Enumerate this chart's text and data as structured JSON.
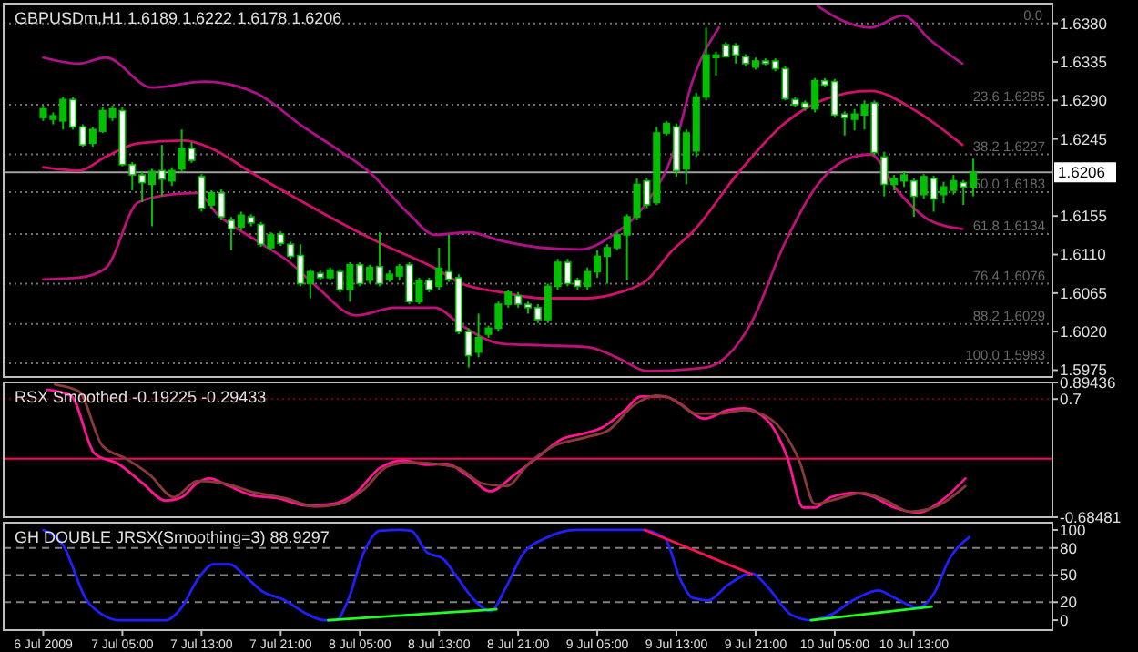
{
  "chart_data": [
    {
      "type": "candlestick",
      "title": "GBPUSDm,H1  1.6189 1.6222 1.6178 1.6206",
      "color": "#00c000",
      "x": [
        "2009-07-06T21:00",
        "2009-07-06T22:00",
        "2009-07-06T23:00",
        "2009-07-07T00:00",
        "2009-07-07T01:00",
        "2009-07-07T02:00",
        "2009-07-07T03:00",
        "2009-07-07T04:00",
        "2009-07-07T05:00",
        "2009-07-07T06:00",
        "2009-07-07T07:00",
        "2009-07-07T08:00",
        "2009-07-07T09:00",
        "2009-07-07T10:00",
        "2009-07-07T11:00",
        "2009-07-07T12:00",
        "2009-07-07T13:00",
        "2009-07-07T14:00",
        "2009-07-07T15:00",
        "2009-07-07T16:00",
        "2009-07-07T17:00",
        "2009-07-07T18:00",
        "2009-07-07T19:00",
        "2009-07-07T20:00",
        "2009-07-07T21:00",
        "2009-07-07T22:00",
        "2009-07-07T23:00",
        "2009-07-08T00:00",
        "2009-07-08T01:00",
        "2009-07-08T02:00",
        "2009-07-08T03:00",
        "2009-07-08T04:00",
        "2009-07-08T05:00",
        "2009-07-08T06:00",
        "2009-07-08T07:00",
        "2009-07-08T08:00",
        "2009-07-08T09:00",
        "2009-07-08T10:00",
        "2009-07-08T11:00",
        "2009-07-08T12:00",
        "2009-07-08T13:00",
        "2009-07-08T14:00",
        "2009-07-08T15:00",
        "2009-07-08T16:00",
        "2009-07-08T17:00",
        "2009-07-08T18:00",
        "2009-07-08T19:00",
        "2009-07-08T20:00",
        "2009-07-08T21:00",
        "2009-07-08T22:00",
        "2009-07-08T23:00",
        "2009-07-09T00:00",
        "2009-07-09T01:00",
        "2009-07-09T02:00",
        "2009-07-09T03:00",
        "2009-07-09T04:00",
        "2009-07-09T05:00",
        "2009-07-09T06:00",
        "2009-07-09T07:00",
        "2009-07-09T08:00",
        "2009-07-09T09:00",
        "2009-07-09T10:00",
        "2009-07-09T11:00",
        "2009-07-09T12:00",
        "2009-07-09T13:00",
        "2009-07-09T14:00",
        "2009-07-09T15:00",
        "2009-07-09T16:00",
        "2009-07-09T17:00",
        "2009-07-09T18:00",
        "2009-07-09T19:00",
        "2009-07-09T20:00",
        "2009-07-09T21:00",
        "2009-07-09T22:00",
        "2009-07-09T23:00",
        "2009-07-10T00:00",
        "2009-07-10T01:00",
        "2009-07-10T02:00",
        "2009-07-10T03:00",
        "2009-07-10T04:00",
        "2009-07-10T05:00",
        "2009-07-10T06:00",
        "2009-07-10T07:00",
        "2009-07-10T08:00",
        "2009-07-10T09:00",
        "2009-07-10T10:00",
        "2009-07-10T11:00",
        "2009-07-10T12:00",
        "2009-07-10T13:00",
        "2009-07-10T14:00",
        "2009-07-10T15:00",
        "2009-07-10T16:00",
        "2009-07-10T17:00",
        "2009-07-10T18:00",
        "2009-07-10T19:00"
      ],
      "ohlc": [
        [
          1.627,
          1.6284,
          1.6266,
          1.628
        ],
        [
          1.6268,
          1.6276,
          1.6262,
          1.6272
        ],
        [
          1.6266,
          1.6294,
          1.6256,
          1.6291
        ],
        [
          1.6291,
          1.6294,
          1.6256,
          1.6259
        ],
        [
          1.6259,
          1.6262,
          1.6236,
          1.6238
        ],
        [
          1.624,
          1.6259,
          1.6236,
          1.6256
        ],
        [
          1.6254,
          1.6282,
          1.6252,
          1.6278
        ],
        [
          1.627,
          1.6284,
          1.6266,
          1.628
        ],
        [
          1.6278,
          1.6282,
          1.6213,
          1.6215
        ],
        [
          1.6215,
          1.6218,
          1.6185,
          1.6203
        ],
        [
          1.6203,
          1.6206,
          1.6171,
          1.6194
        ],
        [
          1.6192,
          1.621,
          1.6143,
          1.6207
        ],
        [
          1.6208,
          1.6238,
          1.6178,
          1.6198
        ],
        [
          1.6196,
          1.6212,
          1.619,
          1.6208
        ],
        [
          1.621,
          1.6256,
          1.6206,
          1.6234
        ],
        [
          1.6234,
          1.6241,
          1.6217,
          1.622
        ],
        [
          1.6201,
          1.6204,
          1.616,
          1.6164
        ],
        [
          1.6168,
          1.6185,
          1.6164,
          1.6182
        ],
        [
          1.6182,
          1.6186,
          1.615,
          1.6154
        ],
        [
          1.615,
          1.6154,
          1.6115,
          1.614
        ],
        [
          1.6142,
          1.616,
          1.6138,
          1.6156
        ],
        [
          1.6154,
          1.6157,
          1.6143,
          1.6147
        ],
        [
          1.6145,
          1.6148,
          1.6119,
          1.6122
        ],
        [
          1.6118,
          1.6136,
          1.6115,
          1.6133
        ],
        [
          1.6134,
          1.6137,
          1.612,
          1.6123
        ],
        [
          1.6122,
          1.6125,
          1.6105,
          1.6108
        ],
        [
          1.6109,
          1.6122,
          1.6073,
          1.6076
        ],
        [
          1.6076,
          1.6093,
          1.6059,
          1.609
        ],
        [
          1.6088,
          1.6091,
          1.608,
          1.6083
        ],
        [
          1.6083,
          1.6095,
          1.608,
          1.6092
        ],
        [
          1.609,
          1.6093,
          1.6066,
          1.6069
        ],
        [
          1.6069,
          1.6101,
          1.6055,
          1.6098
        ],
        [
          1.6098,
          1.6101,
          1.6073,
          1.6076
        ],
        [
          1.608,
          1.6098,
          1.6076,
          1.6095
        ],
        [
          1.6096,
          1.6136,
          1.6073,
          1.6076
        ],
        [
          1.6081,
          1.6092,
          1.6078,
          1.6087
        ],
        [
          1.6085,
          1.6099,
          1.608,
          1.6096
        ],
        [
          1.6098,
          1.6101,
          1.6052,
          1.6055
        ],
        [
          1.6055,
          1.6083,
          1.6052,
          1.608
        ],
        [
          1.608,
          1.6083,
          1.6066,
          1.6069
        ],
        [
          1.6073,
          1.6118,
          1.6069,
          1.6094
        ],
        [
          1.609,
          1.6133,
          1.6078,
          1.6081
        ],
        [
          1.6083,
          1.6087,
          1.6017,
          1.602
        ],
        [
          1.602,
          1.6024,
          1.5978,
          1.5992
        ],
        [
          1.5996,
          1.6041,
          1.599,
          1.6013
        ],
        [
          1.6017,
          1.6027,
          1.6013,
          1.6024
        ],
        [
          1.6024,
          1.6055,
          1.602,
          1.6052
        ],
        [
          1.6052,
          1.6069,
          1.6048,
          1.6066
        ],
        [
          1.6062,
          1.6066,
          1.6048,
          1.6052
        ],
        [
          1.6052,
          1.6055,
          1.6041,
          1.6048
        ],
        [
          1.6048,
          1.6052,
          1.603,
          1.6034
        ],
        [
          1.6034,
          1.6076,
          1.603,
          1.6073
        ],
        [
          1.6073,
          1.6105,
          1.6069,
          1.6101
        ],
        [
          1.6101,
          1.6105,
          1.6073,
          1.6076
        ],
        [
          1.608,
          1.6083,
          1.6069,
          1.6073
        ],
        [
          1.6073,
          1.6095,
          1.6069,
          1.609
        ],
        [
          1.609,
          1.6115,
          1.6083,
          1.6108
        ],
        [
          1.6108,
          1.6122,
          1.6076,
          1.6118
        ],
        [
          1.6118,
          1.6136,
          1.6115,
          1.6133
        ],
        [
          1.6133,
          1.6157,
          1.608,
          1.6154
        ],
        [
          1.6154,
          1.6199,
          1.615,
          1.6192
        ],
        [
          1.6196,
          1.6199,
          1.6164,
          1.6168
        ],
        [
          1.6171,
          1.6259,
          1.6168,
          1.6252
        ],
        [
          1.6252,
          1.6266,
          1.6249,
          1.6263
        ],
        [
          1.6259,
          1.6263,
          1.6201,
          1.6208
        ],
        [
          1.621,
          1.6256,
          1.6192,
          1.6252
        ],
        [
          1.6231,
          1.6299,
          1.6224,
          1.6294
        ],
        [
          1.6294,
          1.6375,
          1.629,
          1.6343
        ],
        [
          1.634,
          1.6347,
          1.6319,
          1.6343
        ],
        [
          1.6355,
          1.6358,
          1.634,
          1.6341
        ],
        [
          1.6354,
          1.6357,
          1.6333,
          1.6343
        ],
        [
          1.6341,
          1.6344,
          1.633,
          1.6333
        ],
        [
          1.6329,
          1.634,
          1.6326,
          1.6336
        ],
        [
          1.6336,
          1.6339,
          1.6331,
          1.6333
        ],
        [
          1.6336,
          1.6339,
          1.6324,
          1.6327
        ],
        [
          1.6327,
          1.633,
          1.629,
          1.6292
        ],
        [
          1.6291,
          1.6294,
          1.6282,
          1.6285
        ],
        [
          1.6287,
          1.629,
          1.6278,
          1.6282
        ],
        [
          1.628,
          1.6316,
          1.6276,
          1.6313
        ],
        [
          1.6313,
          1.6316,
          1.6305,
          1.6308
        ],
        [
          1.6312,
          1.6315,
          1.627,
          1.6273
        ],
        [
          1.6274,
          1.6277,
          1.6249,
          1.627
        ],
        [
          1.6268,
          1.628,
          1.6255,
          1.6274
        ],
        [
          1.6273,
          1.629,
          1.6256,
          1.6285
        ],
        [
          1.6287,
          1.629,
          1.6226,
          1.6229
        ],
        [
          1.6224,
          1.623,
          1.6178,
          1.6192
        ],
        [
          1.6192,
          1.6203,
          1.6185,
          1.6199
        ],
        [
          1.6196,
          1.6206,
          1.6189,
          1.6203
        ],
        [
          1.6196,
          1.6199,
          1.6154,
          1.6178
        ],
        [
          1.618,
          1.6204,
          1.6175,
          1.6201
        ],
        [
          1.6199,
          1.6202,
          1.616,
          1.6175
        ],
        [
          1.618,
          1.6195,
          1.617,
          1.6189
        ],
        [
          1.6185,
          1.6203,
          1.618,
          1.6196
        ],
        [
          1.6194,
          1.6197,
          1.6168,
          1.6189
        ],
        [
          1.6189,
          1.6222,
          1.6178,
          1.6206
        ]
      ],
      "colors": [
        "#00c000",
        "#00c000",
        "#00c000",
        "#ffffff",
        "#ffffff",
        "#00c000",
        "#00c000",
        "#00c000",
        "#ffffff",
        "#ffffff",
        "#ffffff",
        "#00c000",
        "#ffffff",
        "#00c000",
        "#00c000",
        "#ffffff",
        "#ffffff",
        "#00c000",
        "#ffffff",
        "#ffffff",
        "#00c000",
        "#ffffff",
        "#ffffff",
        "#00c000",
        "#ffffff",
        "#ffffff",
        "#ffffff",
        "#00c000",
        "#ffffff",
        "#00c000",
        "#ffffff",
        "#00c000",
        "#ffffff",
        "#00c000",
        "#ffffff",
        "#00c000",
        "#00c000",
        "#ffffff",
        "#00c000",
        "#ffffff",
        "#00c000",
        "#ffffff",
        "#ffffff",
        "#ffffff",
        "#00c000",
        "#00c000",
        "#00c000",
        "#00c000",
        "#ffffff",
        "#ffffff",
        "#ffffff",
        "#00c000",
        "#00c000",
        "#ffffff",
        "#ffffff",
        "#00c000",
        "#00c000",
        "#00c000",
        "#00c000",
        "#00c000",
        "#00c000",
        "#ffffff",
        "#00c000",
        "#00c000",
        "#ffffff",
        "#00c000",
        "#00c000",
        "#00c000",
        "#00c000",
        "#ffffff",
        "#ffffff",
        "#ffffff",
        "#00c000",
        "#ffffff",
        "#ffffff",
        "#ffffff",
        "#ffffff",
        "#ffffff",
        "#00c000",
        "#ffffff",
        "#ffffff",
        "#ffffff",
        "#00c000",
        "#00c000",
        "#ffffff",
        "#ffffff",
        "#00c000",
        "#00c000",
        "#ffffff",
        "#00c000",
        "#ffffff",
        "#00c000",
        "#00c000",
        "#ffffff",
        "#00c000"
      ],
      "series": [
        {
          "type": "line",
          "color": "#b0108a",
          "x": [
            "2009-07-06T21:00",
            "2009-07-07T00:36",
            "2009-07-07T03:18",
            "2009-07-07T08:00",
            "2009-07-07T13:18",
            "2009-07-07T18:36",
            "2009-07-07T23:18",
            "2009-07-08T02:36",
            "2009-07-08T06:00",
            "2009-07-08T10:00",
            "2009-07-08T12:36",
            "2009-07-08T16:00",
            "2009-07-08T19:18",
            "2009-07-08T23:18",
            "2009-07-09T03:18",
            "2009-07-09T06:36",
            "2009-07-09T10:00",
            "2009-07-09T12:36",
            "2009-07-09T14:36",
            "2009-07-09T17:18",
            "2009-07-09T22:00",
            "2009-07-10T03:18",
            "2009-07-10T06:00",
            "2009-07-10T08:36",
            "2009-07-10T11:54",
            "2009-07-10T14:36",
            "2009-07-10T17:54"
          ],
          "values": [
            1.634,
            1.6333,
            1.634,
            1.6305,
            1.6312,
            1.6298,
            1.6259,
            1.6234,
            1.6206,
            1.6157,
            1.6133,
            1.6136,
            1.6126,
            1.6118,
            1.6116,
            1.6133,
            1.6171,
            1.6227,
            1.6312,
            1.6375,
            null,
            1.64,
            1.6382,
            1.6375,
            1.6389,
            1.6361,
            1.6333
          ]
        },
        {
          "type": "line",
          "color": "#d0106a",
          "x": [
            "2009-07-06T21:00",
            "2009-07-07T00:36",
            "2009-07-07T03:18",
            "2009-07-07T06:36",
            "2009-07-07T11:18",
            "2009-07-07T14:00",
            "2009-07-07T18:00",
            "2009-07-07T23:18",
            "2009-07-08T02:36",
            "2009-07-08T07:18",
            "2009-07-08T12:36",
            "2009-07-08T15:18",
            "2009-07-08T19:18",
            "2009-07-08T23:18",
            "2009-07-09T04:00",
            "2009-07-09T07:18",
            "2009-07-09T10:00",
            "2009-07-09T12:36",
            "2009-07-09T14:36",
            "2009-07-09T19:18",
            "2009-07-09T23:54",
            "2009-07-10T03:54",
            "2009-07-10T08:36",
            "2009-07-10T13:18",
            "2009-07-10T17:54"
          ],
          "values": [
            1.6212,
            1.6208,
            1.6224,
            1.624,
            1.6243,
            1.6234,
            1.6206,
            1.6171,
            1.615,
            1.6122,
            1.6094,
            1.6076,
            1.6066,
            1.6059,
            1.6059,
            1.6066,
            1.608,
            1.6115,
            1.6136,
            1.6206,
            1.6263,
            1.6291,
            1.6301,
            1.6277,
            1.6238
          ]
        },
        {
          "type": "line",
          "color": "#c0107a",
          "x": [
            "2009-07-06T21:00",
            "2009-07-07T00:36",
            "2009-07-07T03:18",
            "2009-07-07T06:36",
            "2009-07-07T09:54",
            "2009-07-07T12:36",
            "2009-07-07T14:36",
            "2009-07-07T18:36",
            "2009-07-07T21:54",
            "2009-07-08T00:36",
            "2009-07-08T04:36",
            "2009-07-08T08:36",
            "2009-07-08T12:36",
            "2009-07-08T15:18",
            "2009-07-08T19:18",
            "2009-07-08T23:18",
            "2009-07-09T04:00",
            "2009-07-09T07:18",
            "2009-07-09T10:00",
            "2009-07-09T15:54",
            "2009-07-09T20:36",
            "2009-07-09T23:54",
            "2009-07-10T03:18",
            "2009-07-10T06:00",
            "2009-07-10T08:36",
            "2009-07-10T11:18",
            "2009-07-10T14:36",
            "2009-07-10T17:54"
          ],
          "values": [
            1.6081,
            1.6083,
            1.6094,
            1.6171,
            1.618,
            1.6182,
            1.6157,
            1.6126,
            1.6101,
            1.6073,
            1.6039,
            1.6048,
            1.6048,
            1.6027,
            1.6006,
            1.6004,
            1.6002,
            1.5988,
            1.5974,
            1.5978,
            1.6031,
            1.6122,
            1.6192,
            1.622,
            1.6227,
            1.6185,
            1.615,
            1.614
          ]
        }
      ],
      "xlim": [
        "2009-07-06T17:00",
        "2009-07-11T03:00"
      ],
      "ylim": [
        1.5967,
        1.6403
      ],
      "yticks": [
        {
          "value": 1.638,
          "label": "1.6380"
        },
        {
          "value": 1.6335,
          "label": "1.6335"
        },
        {
          "value": 1.629,
          "label": "1.6290"
        },
        {
          "value": 1.6245,
          "label": "1.6245"
        },
        {
          "value": 1.6155,
          "label": "1.6155"
        },
        {
          "value": 1.611,
          "label": "1.6110"
        },
        {
          "value": 1.6065,
          "label": "1.6065"
        },
        {
          "value": 1.602,
          "label": "1.6020"
        },
        {
          "value": 1.5975,
          "label": "1.5975"
        }
      ],
      "ref_lines": [
        {
          "axis": "y",
          "value": 1.638,
          "color": "#707070",
          "line_style": "dotted"
        },
        {
          "axis": "y",
          "value": 1.6285,
          "label": "23.6 1.6285",
          "color": "#707070",
          "line_style": "dotted"
        },
        {
          "axis": "y",
          "value": 1.6227,
          "label": "38.2 1.6227",
          "color": "#707070",
          "line_style": "dotted"
        },
        {
          "axis": "y",
          "value": 1.6183,
          "label": "50.0 1.6183",
          "color": "#707070",
          "line_style": "dotted"
        },
        {
          "axis": "y",
          "value": 1.6134,
          "label": "61.8 1.6134",
          "color": "#707070",
          "line_style": "dotted"
        },
        {
          "axis": "y",
          "value": 1.6076,
          "label": "76.4 1.6076",
          "color": "#707070",
          "line_style": "dotted"
        },
        {
          "axis": "y",
          "value": 1.6029,
          "label": "88.2 1.6029",
          "color": "#707070",
          "line_style": "dotted"
        },
        {
          "axis": "y",
          "value": 1.5983,
          "label": "100.0 1.5983",
          "color": "#707070",
          "line_style": "dotted"
        },
        {
          "axis": "y",
          "value": 1.6206,
          "label": "1.6206",
          "color": "#a0a0a0",
          "line_style": "solid"
        }
      ],
      "annotations": [
        {
          "text": "0.0",
          "x": "2009-07-11T02:00",
          "y": 1.638
        }
      ],
      "tick_labels": "y"
    },
    {
      "type": "line",
      "title": "RSX Smoothed -0.19225 -0.29433",
      "series": [
        {
          "color": "#ff1493",
          "x": [
            "2009-07-06T21:24",
            "2009-07-06T23:48",
            "2009-07-07T02:12",
            "2009-07-07T04:36",
            "2009-07-07T07:00",
            "2009-07-07T09:24",
            "2009-07-07T11:00",
            "2009-07-07T12:36",
            "2009-07-07T13:48",
            "2009-07-07T15:48",
            "2009-07-07T18:12",
            "2009-07-07T20:36",
            "2009-07-07T23:48",
            "2009-07-08T02:12",
            "2009-07-08T04:36",
            "2009-07-08T07:00",
            "2009-07-08T09:24",
            "2009-07-08T11:48",
            "2009-07-08T13:48",
            "2009-07-08T15:48",
            "2009-07-08T18:12",
            "2009-07-08T20:36",
            "2009-07-08T23:00",
            "2009-07-09T01:24",
            "2009-07-09T03:48",
            "2009-07-09T05:24",
            "2009-07-09T07:48",
            "2009-07-09T09:24",
            "2009-07-09T11:48",
            "2009-07-09T13:24",
            "2009-07-09T15:48",
            "2009-07-09T18:12",
            "2009-07-09T19:48",
            "2009-07-09T22:12",
            "2009-07-10T00:12",
            "2009-07-10T01:48",
            "2009-07-10T03:00",
            "2009-07-10T04:36",
            "2009-07-10T07:00",
            "2009-07-10T08:36",
            "2009-07-10T11:00",
            "2009-07-10T13:24",
            "2009-07-10T15:48",
            "2009-07-10T18:12"
          ],
          "values": [
            0.81,
            0.74,
            0.06,
            -0.06,
            -0.28,
            -0.49,
            -0.45,
            -0.28,
            -0.23,
            -0.32,
            -0.43,
            -0.46,
            -0.55,
            -0.53,
            -0.4,
            -0.11,
            -0.02,
            -0.07,
            -0.06,
            -0.19,
            -0.38,
            -0.19,
            0.02,
            0.23,
            0.3,
            0.36,
            0.57,
            0.73,
            0.73,
            0.64,
            0.47,
            0.57,
            0.59,
            0.45,
            0.02,
            -0.57,
            -0.57,
            -0.45,
            -0.4,
            -0.43,
            -0.57,
            -0.63,
            -0.49,
            -0.23
          ]
        },
        {
          "color": "#8b3a3a",
          "x": [
            "2009-07-06T22:12",
            "2009-07-07T00:36",
            "2009-07-07T03:00",
            "2009-07-07T05:24",
            "2009-07-07T07:48",
            "2009-07-07T10:12",
            "2009-07-07T12:36",
            "2009-07-07T15:00",
            "2009-07-07T18:12",
            "2009-07-07T21:24",
            "2009-07-08T00:36",
            "2009-07-08T03:00",
            "2009-07-08T05:24",
            "2009-07-08T07:48",
            "2009-07-08T10:12",
            "2009-07-08T12:36",
            "2009-07-08T15:00",
            "2009-07-08T17:24",
            "2009-07-08T19:48",
            "2009-07-08T22:12",
            "2009-07-09T00:36",
            "2009-07-09T03:48",
            "2009-07-09T06:12",
            "2009-07-09T08:36",
            "2009-07-09T11:00",
            "2009-07-09T12:36",
            "2009-07-09T15:00",
            "2009-07-09T17:24",
            "2009-07-09T19:48",
            "2009-07-09T22:12",
            "2009-07-10T01:24",
            "2009-07-10T03:00",
            "2009-07-10T04:36",
            "2009-07-10T07:48",
            "2009-07-10T10:12",
            "2009-07-10T12:36",
            "2009-07-10T15:00",
            "2009-07-10T18:12"
          ],
          "values": [
            0.87,
            0.79,
            0.15,
            0,
            -0.19,
            -0.45,
            -0.26,
            -0.28,
            -0.39,
            -0.46,
            -0.56,
            -0.53,
            -0.36,
            -0.09,
            -0.04,
            -0.06,
            -0.11,
            -0.29,
            -0.32,
            -0.04,
            0.15,
            0.25,
            0.34,
            0.62,
            0.74,
            0.7,
            0.53,
            0.53,
            0.57,
            0.49,
            -0.02,
            -0.53,
            -0.49,
            -0.4,
            -0.49,
            -0.62,
            -0.57,
            -0.32
          ]
        }
      ],
      "xlim": [
        "2009-07-06T17:00",
        "2009-07-11T03:00"
      ],
      "ylim": [
        -0.68481,
        0.89436
      ],
      "yticks": [
        0.89436,
        0.7,
        -0.68481
      ],
      "ref_lines": [
        {
          "axis": "y",
          "value": 0.7,
          "color": "#800000",
          "line_style": "dotted"
        },
        {
          "axis": "y",
          "value": 0,
          "color": "#ff0066",
          "line_style": "solid"
        }
      ],
      "tick_labels": "y"
    },
    {
      "type": "line",
      "title": "GH DOUBLE JRSX(Smoothing=3) 88.9297",
      "series": [
        {
          "color": "#2020ff",
          "x": [
            "2009-07-06T21:00",
            "2009-07-06T23:00",
            "2009-07-07T01:24",
            "2009-07-07T03:00",
            "2009-07-07T04:36",
            "2009-07-07T07:00",
            "2009-07-07T09:24",
            "2009-07-07T11:00",
            "2009-07-07T12:36",
            "2009-07-07T14:12",
            "2009-07-07T15:48",
            "2009-07-07T17:24",
            "2009-07-07T19:00",
            "2009-07-07T21:24",
            "2009-07-07T23:48",
            "2009-07-08T01:24",
            "2009-07-08T02:36",
            "2009-07-08T03:48",
            "2009-07-08T05:24",
            "2009-07-08T07:00",
            "2009-07-08T09:00",
            "2009-07-08T10:12",
            "2009-07-08T11:48",
            "2009-07-08T13:24",
            "2009-07-08T15:00",
            "2009-07-08T16:36",
            "2009-07-08T18:12",
            "2009-07-08T19:48",
            "2009-07-08T21:24",
            "2009-07-08T23:48",
            "2009-07-09T03:00",
            "2009-07-09T05:24",
            "2009-07-09T09:24",
            "2009-07-09T11:48",
            "2009-07-09T13:24",
            "2009-07-09T14:36",
            "2009-07-09T16:12",
            "2009-07-09T18:12",
            "2009-07-09T20:36",
            "2009-07-09T22:12",
            "2009-07-10T00:36",
            "2009-07-10T02:36",
            "2009-07-10T04:36",
            "2009-07-10T07:00",
            "2009-07-10T09:24",
            "2009-07-10T11:00",
            "2009-07-10T13:24",
            "2009-07-10T15:00",
            "2009-07-10T16:36",
            "2009-07-10T18:36"
          ],
          "values": [
            100,
            83,
            22,
            6,
            0,
            0,
            0,
            14,
            45,
            62,
            62,
            49,
            33,
            22,
            6,
            0,
            0,
            22,
            75,
            99,
            100,
            99,
            75,
            68,
            45,
            22,
            10,
            37,
            72,
            91,
            100,
            100,
            100,
            91,
            45,
            25,
            22,
            39,
            52,
            37,
            6,
            0,
            6,
            23,
            33,
            25,
            14,
            29,
            68,
            92
          ]
        },
        {
          "type": "line",
          "color": "#ff1050",
          "x": [
            "2009-07-09T09:48",
            "2009-07-09T20:36"
          ],
          "values": [
            100,
            51
          ]
        },
        {
          "type": "line",
          "color": "#20ff20",
          "x": [
            "2009-07-08T01:48",
            "2009-07-08T18:48"
          ],
          "values": [
            0,
            12
          ]
        },
        {
          "type": "line",
          "color": "#20ff20",
          "x": [
            "2009-07-10T02:36",
            "2009-07-10T14:48"
          ],
          "values": [
            0,
            15
          ]
        }
      ],
      "xlim": [
        "2009-07-06T17:00",
        "2009-07-11T03:00"
      ],
      "ylim": [
        -11,
        108
      ],
      "yticks": [
        100,
        80,
        50,
        20,
        0
      ],
      "xticks": [
        {
          "value": "2009-07-06T21:00",
          "label": "6 Jul 2009"
        },
        {
          "value": "2009-07-07T05:00",
          "label": "7 Jul 05:00"
        },
        {
          "value": "2009-07-07T13:00",
          "label": "7 Jul 13:00"
        },
        {
          "value": "2009-07-07T21:00",
          "label": "7 Jul 21:00"
        },
        {
          "value": "2009-07-08T05:00",
          "label": "8 Jul 05:00"
        },
        {
          "value": "2009-07-08T13:00",
          "label": "8 Jul 13:00"
        },
        {
          "value": "2009-07-08T21:00",
          "label": "8 Jul 21:00"
        },
        {
          "value": "2009-07-09T05:00",
          "label": "9 Jul 05:00"
        },
        {
          "value": "2009-07-09T13:00",
          "label": "9 Jul 13:00"
        },
        {
          "value": "2009-07-09T21:00",
          "label": "9 Jul 21:00"
        },
        {
          "value": "2009-07-10T05:00",
          "label": "10 Jul 05:00"
        },
        {
          "value": "2009-07-10T13:00",
          "label": "10 Jul 13:00"
        }
      ],
      "ref_lines": [
        {
          "axis": "y",
          "value": 80,
          "color": "#808080",
          "line_style": "dashed"
        },
        {
          "axis": "y",
          "value": 50,
          "color": "#808080",
          "line_style": "dashed"
        },
        {
          "axis": "y",
          "value": 20,
          "color": "#808080",
          "line_style": "dashed"
        }
      ]
    }
  ]
}
